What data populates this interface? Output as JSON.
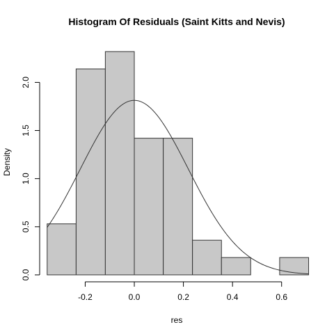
{
  "chart_data": {
    "type": "histogram",
    "title": "Histogram Of Residuals (Saint Kitts and Nevis)",
    "xlabel": "res",
    "ylabel": "Density",
    "xlim": [
      -0.36,
      0.7
    ],
    "ylim": [
      0,
      2.35
    ],
    "x_ticks": [
      -0.2,
      0.0,
      0.2,
      0.4,
      0.6
    ],
    "x_tick_labels": [
      "-0.2",
      "0.0",
      "0.2",
      "0.4",
      "0.6"
    ],
    "y_ticks": [
      0.0,
      0.5,
      1.0,
      1.5,
      2.0
    ],
    "y_tick_labels": [
      "0.0",
      "0.5",
      "1.0",
      "1.5",
      "2.0"
    ],
    "bins": [
      {
        "x0": -0.355,
        "x1": -0.237,
        "density": 0.53
      },
      {
        "x0": -0.237,
        "x1": -0.118,
        "density": 2.14
      },
      {
        "x0": -0.118,
        "x1": 0.0,
        "density": 2.32
      },
      {
        "x0": 0.0,
        "x1": 0.118,
        "density": 1.42
      },
      {
        "x0": 0.118,
        "x1": 0.237,
        "density": 1.42
      },
      {
        "x0": 0.237,
        "x1": 0.355,
        "density": 0.36
      },
      {
        "x0": 0.355,
        "x1": 0.474,
        "density": 0.18
      },
      {
        "x0": 0.474,
        "x1": 0.592,
        "density": 0.0
      },
      {
        "x0": 0.592,
        "x1": 0.71,
        "density": 0.18
      }
    ],
    "normal_curve": {
      "mean": 0.0,
      "sd": 0.22
    },
    "bar_color": "#c8c8c8",
    "bar_border_color": "#333333",
    "curve_color": "#333333",
    "grid": false,
    "legend": "none"
  }
}
